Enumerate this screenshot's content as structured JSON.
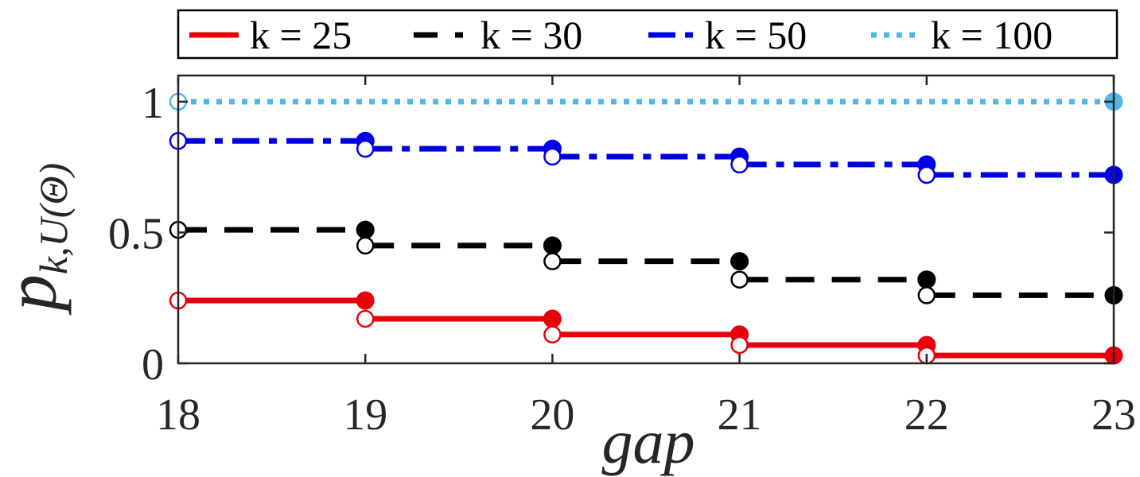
{
  "chart_data": {
    "type": "line",
    "step": true,
    "title": "",
    "xlabel": "gap",
    "ylabel": "p_{k,U(Θ)}",
    "xlim": [
      18,
      23
    ],
    "ylim": [
      0,
      1.1
    ],
    "xticks": [
      18,
      19,
      20,
      21,
      22,
      23
    ],
    "yticks": [
      0,
      0.5,
      1
    ],
    "ytick_labels": [
      "0",
      "0.5",
      "1"
    ],
    "grid": false,
    "legend_placement": "top-outside",
    "legend_orientation": "horizontal",
    "x_segments": [
      [
        18,
        19
      ],
      [
        19,
        20
      ],
      [
        20,
        21
      ],
      [
        21,
        22
      ],
      [
        22,
        23
      ]
    ],
    "series": [
      {
        "name": "k = 25",
        "color": "#e8000b",
        "linestyle": "solid",
        "segment_values": [
          0.24,
          0.17,
          0.11,
          0.07,
          0.03
        ]
      },
      {
        "name": "k = 30",
        "color": "#000000",
        "linestyle": "dashed",
        "segment_values": [
          0.51,
          0.45,
          0.39,
          0.32,
          0.26
        ]
      },
      {
        "name": "k = 50",
        "color": "#0000e6",
        "linestyle": "dashdot",
        "segment_values": [
          0.85,
          0.82,
          0.79,
          0.76,
          0.72
        ]
      },
      {
        "name": "k = 100",
        "color": "#4db8e8",
        "linestyle": "dotted",
        "segment_values": [
          1.0
        ]
      }
    ]
  }
}
